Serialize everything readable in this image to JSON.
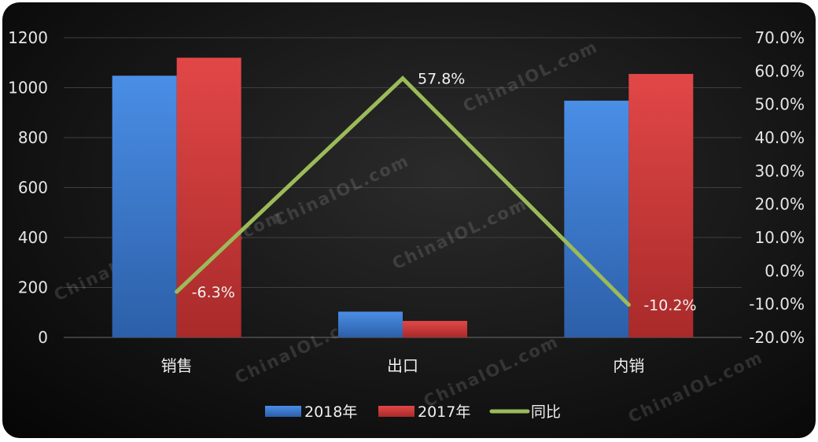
{
  "chart_data": {
    "type": "bar",
    "categories": [
      "销售",
      "出口",
      "内销"
    ],
    "series": [
      {
        "name": "2018年",
        "type": "bar",
        "axis": "left",
        "values": [
          1048,
          103,
          948
        ],
        "color": "#3f7fd6"
      },
      {
        "name": "2017年",
        "type": "bar",
        "axis": "left",
        "values": [
          1120,
          66,
          1055
        ],
        "color": "#d94040"
      },
      {
        "name": "同比",
        "type": "line",
        "axis": "right",
        "values": [
          -6.3,
          57.8,
          -10.2
        ],
        "labels": [
          "-6.3%",
          "57.8%",
          "-10.2%"
        ],
        "color": "#9bbb59"
      }
    ],
    "y_left": {
      "min": 0,
      "max": 1200,
      "ticks": [
        0,
        200,
        400,
        600,
        800,
        1000,
        1200
      ]
    },
    "y_right": {
      "min": -20,
      "max": 70,
      "ticks": [
        "-20.0%",
        "-10.0%",
        "0.0%",
        "10.0%",
        "20.0%",
        "30.0%",
        "40.0%",
        "50.0%",
        "60.0%",
        "70.0%"
      ],
      "tick_values": [
        -20,
        -10,
        0,
        10,
        20,
        30,
        40,
        50,
        60,
        70
      ]
    },
    "grid": true,
    "legend": "bottom",
    "watermark": "ChinaIOL.com"
  }
}
